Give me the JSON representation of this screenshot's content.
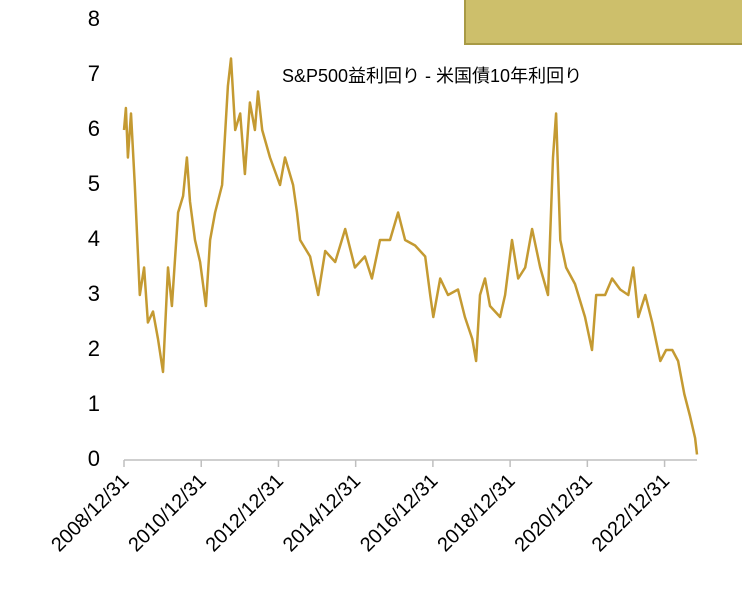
{
  "chart_data": {
    "type": "line",
    "legend_text": "S&P500益利回り - 米国債10年利回り",
    "series": [
      {
        "name": "S&P500益利回り - 米国債10年利回り",
        "color": "#c49a32",
        "x": [
          2009.0,
          2009.05,
          2009.1,
          2009.18,
          2009.28,
          2009.41,
          2009.52,
          2009.62,
          2009.75,
          2009.88,
          2010.01,
          2010.14,
          2010.24,
          2010.4,
          2010.53,
          2010.63,
          2010.71,
          2010.84,
          2010.97,
          2011.12,
          2011.23,
          2011.36,
          2011.54,
          2011.69,
          2011.77,
          2011.88,
          2012.01,
          2012.13,
          2012.26,
          2012.39,
          2012.47,
          2012.58,
          2012.78,
          2013.04,
          2013.17,
          2013.38,
          2013.48,
          2013.56,
          2013.82,
          2014.03,
          2014.21,
          2014.47,
          2014.73,
          2014.98,
          2015.24,
          2015.42,
          2015.63,
          2015.89,
          2016.1,
          2016.28,
          2016.54,
          2016.8,
          2016.93,
          2017.01,
          2017.19,
          2017.39,
          2017.65,
          2017.83,
          2018.02,
          2018.12,
          2018.22,
          2018.35,
          2018.48,
          2018.74,
          2018.87,
          2019.05,
          2019.21,
          2019.39,
          2019.57,
          2019.78,
          2019.98,
          2020.11,
          2020.19,
          2020.3,
          2020.45,
          2020.68,
          2020.94,
          2021.12,
          2021.23,
          2021.46,
          2021.64,
          2021.85,
          2022.06,
          2022.19,
          2022.32,
          2022.5,
          2022.68,
          2022.89,
          2023.04,
          2023.2,
          2023.35,
          2023.51,
          2023.66,
          2023.79,
          2023.84
        ],
        "values": [
          6.0,
          6.4,
          5.5,
          6.3,
          5.0,
          3.0,
          3.5,
          2.5,
          2.7,
          2.2,
          1.6,
          3.5,
          2.8,
          4.5,
          4.8,
          5.5,
          4.7,
          4.0,
          3.6,
          2.8,
          4.0,
          4.5,
          5.0,
          6.8,
          7.3,
          6.0,
          6.3,
          5.2,
          6.5,
          6.0,
          6.7,
          6.0,
          5.5,
          5.0,
          5.5,
          5.0,
          4.5,
          4.0,
          3.7,
          3.0,
          3.8,
          3.6,
          4.2,
          3.5,
          3.7,
          3.3,
          4.0,
          4.0,
          4.5,
          4.0,
          3.9,
          3.7,
          3.0,
          2.6,
          3.3,
          3.0,
          3.1,
          2.6,
          2.2,
          1.8,
          3.0,
          3.3,
          2.8,
          2.6,
          3.0,
          4.0,
          3.3,
          3.5,
          4.2,
          3.5,
          3.0,
          5.5,
          6.3,
          4.0,
          3.5,
          3.2,
          2.6,
          2.0,
          3.0,
          3.0,
          3.3,
          3.1,
          3.0,
          3.5,
          2.6,
          3.0,
          2.5,
          1.8,
          2.0,
          2.0,
          1.8,
          1.2,
          0.8,
          0.4,
          0.1
        ]
      }
    ],
    "xlim": [
      2009.0,
      2023.84
    ],
    "xticks": [
      {
        "value": 2009.0,
        "label": "2008/12/31"
      },
      {
        "value": 2011.0,
        "label": "2010/12/31"
      },
      {
        "value": 2013.0,
        "label": "2012/12/31"
      },
      {
        "value": 2015.0,
        "label": "2014/12/31"
      },
      {
        "value": 2017.0,
        "label": "2016/12/31"
      },
      {
        "value": 2019.0,
        "label": "2018/12/31"
      },
      {
        "value": 2021.0,
        "label": "2020/12/31"
      },
      {
        "value": 2023.0,
        "label": "2022/12/31"
      }
    ],
    "ylim": [
      0,
      8
    ],
    "yticks": [
      0,
      1,
      2,
      3,
      4,
      5,
      6,
      7,
      8
    ],
    "grid": false
  }
}
